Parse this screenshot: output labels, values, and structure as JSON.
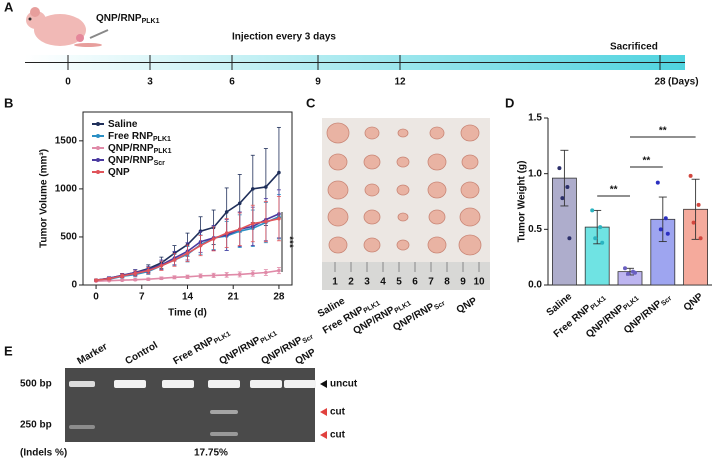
{
  "panels": [
    "A",
    "B",
    "C",
    "D",
    "E"
  ],
  "timeline": {
    "treatment": {
      "name": "QNP/RNP",
      "sub": "PLK1"
    },
    "note": "Injection every 3 days",
    "end_note": "Sacrificed",
    "days": [
      0,
      3,
      6,
      9,
      12,
      28
    ],
    "unit": "(Days)"
  },
  "chart_data": [
    {
      "type": "line",
      "xlabel": "Time (d)",
      "ylabel": "Tumor Volume (mm³)",
      "x": [
        0,
        2,
        4,
        6,
        8,
        10,
        12,
        14,
        16,
        18,
        20,
        22,
        24,
        26,
        28
      ],
      "xlim": [
        -2,
        30
      ],
      "xticks": [
        0,
        7,
        14,
        21,
        28
      ],
      "ylim": [
        0,
        1800
      ],
      "yticks": [
        0,
        500,
        1000,
        1500
      ],
      "series": [
        {
          "name": "Saline",
          "color": "#1f2f5a",
          "values": [
            50,
            70,
            100,
            130,
            170,
            230,
            330,
            420,
            560,
            600,
            760,
            850,
            1000,
            1020,
            1170
          ],
          "errors": [
            10,
            15,
            20,
            30,
            40,
            60,
            80,
            120,
            150,
            180,
            250,
            300,
            350,
            400,
            470
          ]
        },
        {
          "name": "Free RNP",
          "sub": "PLK1",
          "color": "#2a8fc4",
          "values": [
            50,
            60,
            90,
            110,
            140,
            200,
            260,
            320,
            420,
            490,
            510,
            560,
            590,
            650,
            710
          ],
          "errors": [
            10,
            12,
            18,
            25,
            30,
            45,
            60,
            80,
            100,
            120,
            150,
            170,
            190,
            210,
            230
          ]
        },
        {
          "name": "QNP/RNP",
          "sub": "PLK1",
          "color": "#e08aa8",
          "values": [
            40,
            45,
            50,
            55,
            60,
            70,
            80,
            85,
            95,
            100,
            105,
            110,
            120,
            130,
            150
          ],
          "errors": [
            5,
            6,
            8,
            10,
            12,
            14,
            16,
            18,
            20,
            22,
            24,
            26,
            28,
            30,
            32
          ]
        },
        {
          "name": "QNP/RNP",
          "sub": "Scr",
          "color": "#4b3aa0",
          "values": [
            50,
            70,
            100,
            130,
            160,
            210,
            280,
            350,
            450,
            490,
            520,
            580,
            610,
            680,
            740
          ],
          "errors": [
            10,
            15,
            20,
            28,
            35,
            50,
            70,
            90,
            110,
            130,
            160,
            180,
            200,
            220,
            250
          ]
        },
        {
          "name": "QNP",
          "color": "#e0545a",
          "values": [
            50,
            65,
            95,
            120,
            150,
            200,
            260,
            330,
            410,
            480,
            540,
            580,
            640,
            660,
            690
          ],
          "errors": [
            10,
            14,
            20,
            26,
            34,
            48,
            65,
            85,
            105,
            125,
            150,
            170,
            190,
            210,
            230
          ]
        }
      ],
      "annotation": "***"
    },
    {
      "type": "bar",
      "ylabel": "Tumor Weight (g)",
      "categories": [
        {
          "name": "Saline"
        },
        {
          "name": "Free RNP",
          "sub": "PLK1"
        },
        {
          "name": "QNP/RNP",
          "sub": "PLK1"
        },
        {
          "name": "QNP/RNP",
          "sub": "Scr"
        },
        {
          "name": "QNP"
        }
      ],
      "values": [
        0.96,
        0.52,
        0.12,
        0.59,
        0.68
      ],
      "errors": [
        0.25,
        0.15,
        0.03,
        0.2,
        0.27
      ],
      "points": [
        [
          1.05,
          0.88,
          0.78,
          0.42
        ],
        [
          0.67,
          0.52,
          0.42,
          0.38
        ],
        [
          0.15,
          0.12,
          0.1,
          0.11
        ],
        [
          0.92,
          0.6,
          0.5,
          0.46
        ],
        [
          0.98,
          0.72,
          0.56,
          0.42
        ]
      ],
      "colors": [
        "#aeadcc",
        "#6fe3e3",
        "#bdb5f0",
        "#9ea5f0",
        "#f5aa9c"
      ],
      "point_colors": [
        "#2b2f6a",
        "#2bb3c0",
        "#6a5fc0",
        "#2b2fc0",
        "#d2463e"
      ],
      "ylim": [
        0,
        1.5
      ],
      "yticks": [
        {
          "value": 0,
          "label": "0.0"
        },
        {
          "value": 0.5,
          "label": "0.5"
        },
        {
          "value": 1,
          "label": "1.0"
        },
        {
          "value": 1.5,
          "label": "1.5"
        }
      ],
      "annotations": [
        "**",
        "**",
        "**"
      ]
    }
  ],
  "photo": {
    "groups": [
      {
        "name": "Saline"
      },
      {
        "name": "Free RNP",
        "sub": "PLK1"
      },
      {
        "name": "QNP/RNP",
        "sub": "PLK1"
      },
      {
        "name": "QNP/RNP",
        "sub": "Scr"
      },
      {
        "name": "QNP"
      }
    ],
    "ruler_labels": [
      "1",
      "2",
      "3",
      "4",
      "5",
      "6",
      "7",
      "8",
      "9",
      "10"
    ]
  },
  "gel": {
    "lanes": [
      {
        "name": "Marker"
      },
      {
        "name": "Control"
      },
      {
        "name": "Free RNP",
        "sub": "PLK1"
      },
      {
        "name": "QNP/RNP",
        "sub": "PLK1"
      },
      {
        "name": "QNP/RNP",
        "sub": "Scr"
      },
      {
        "name": "QNP"
      }
    ],
    "size_labels": [
      "500 bp",
      "250 bp"
    ],
    "band_labels": [
      "uncut",
      "cut",
      "cut"
    ],
    "indels_title": "(Indels %)",
    "indels": [
      null,
      null,
      null,
      17.75,
      null,
      null
    ],
    "indels_labels": [
      null,
      null,
      null,
      "17.75%",
      null,
      null
    ]
  }
}
